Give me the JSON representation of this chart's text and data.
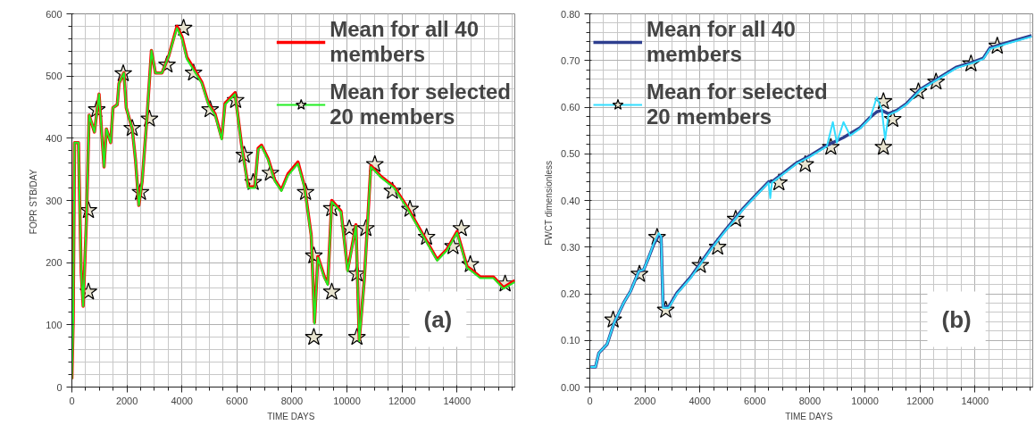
{
  "chart_data": [
    {
      "type": "line",
      "xlabel": "TIME   DAYS",
      "ylabel": "FOPR  STB/DAY",
      "xlim": [
        0,
        16100
      ],
      "ylim": [
        0,
        600
      ],
      "xticks": [
        0,
        2000,
        4000,
        6000,
        8000,
        10000,
        12000,
        14000
      ],
      "yticks": [
        0,
        100,
        200,
        300,
        400,
        500,
        600
      ],
      "grid": true,
      "legend": "top right",
      "annotations": [
        "(a)"
      ],
      "series": [
        {
          "name": "Mean for all 40 members",
          "color": "#ff0000",
          "x": [
            0,
            48,
            96,
            240,
            265,
            337,
            410,
            530,
            627,
            820,
            988,
            1169,
            1253,
            1410,
            1494,
            1650,
            1711,
            1891,
            1976,
            2193,
            2313,
            2434,
            2554,
            2735,
            2891,
            3036,
            3277,
            3518,
            3819,
            4000,
            4181,
            4422,
            4723,
            4964,
            5205,
            5446,
            5566,
            5928,
            6169,
            6410,
            6651,
            6771,
            6892,
            7133,
            7374,
            7615,
            7856,
            8217,
            8458,
            8699,
            8819,
            8940,
            9181,
            9301,
            9446,
            9783,
            10024,
            10325,
            10446,
            10626,
            10867,
            11229,
            11711,
            12193,
            12554,
            12916,
            13277,
            13639,
            14000,
            14362,
            14843,
            15325,
            15687,
            16100
          ],
          "values": [
            13,
            108,
            393,
            393,
            337,
            186,
            130,
            270,
            437,
            410,
            471,
            354,
            415,
            393,
            449,
            454,
            488,
            505,
            449,
            415,
            365,
            292,
            331,
            437,
            541,
            505,
            505,
            532,
            580,
            563,
            530,
            513,
            490,
            456,
            439,
            400,
            456,
            473,
            389,
            322,
            322,
            384,
            389,
            367,
            333,
            317,
            343,
            362,
            322,
            244,
            104,
            210,
            177,
            166,
            300,
            283,
            188,
            261,
            76,
            171,
            356,
            339,
            322,
            289,
            261,
            233,
            205,
            222,
            250,
            194,
            177,
            177,
            160,
            171
          ]
        },
        {
          "name": "Mean for selected 20 members",
          "color": "#22ee22",
          "x": [
            0,
            48,
            96,
            240,
            265,
            337,
            410,
            530,
            627,
            820,
            988,
            1169,
            1253,
            1410,
            1494,
            1650,
            1711,
            1891,
            1976,
            2193,
            2313,
            2434,
            2554,
            2735,
            2891,
            3036,
            3277,
            3518,
            3819,
            4000,
            4181,
            4422,
            4723,
            4964,
            5205,
            5446,
            5566,
            5928,
            6169,
            6410,
            6651,
            6771,
            6892,
            7133,
            7374,
            7615,
            7856,
            8217,
            8458,
            8699,
            8819,
            8940,
            9181,
            9301,
            9446,
            9783,
            10024,
            10325,
            10446,
            10626,
            10867,
            11229,
            11711,
            12193,
            12554,
            12916,
            13277,
            13639,
            14000,
            14362,
            14843,
            15325,
            15687,
            16100
          ],
          "values": [
            13,
            108,
            393,
            393,
            337,
            186,
            130,
            270,
            437,
            410,
            471,
            354,
            415,
            393,
            449,
            454,
            488,
            505,
            449,
            415,
            365,
            292,
            331,
            437,
            541,
            505,
            505,
            532,
            577,
            560,
            527,
            510,
            488,
            454,
            437,
            398,
            454,
            471,
            387,
            320,
            320,
            382,
            387,
            365,
            331,
            315,
            340,
            359,
            320,
            242,
            102,
            208,
            175,
            164,
            298,
            281,
            186,
            259,
            74,
            169,
            354,
            337,
            320,
            287,
            259,
            231,
            203,
            220,
            248,
            192,
            175,
            175,
            158,
            169
          ]
        },
        {
          "type": "scatter",
          "marker": "star",
          "color": "#e8e4d0",
          "x": [
            602,
            602,
            904,
            1867,
            2193,
            2494,
            2819,
            3458,
            4060,
            4422,
            5024,
            5952,
            6265,
            6590,
            7217,
            8494,
            8795,
            8795,
            9446,
            9446,
            10084,
            10361,
            10361,
            10687,
            11012,
            11650,
            12289,
            12892,
            13855,
            14157,
            14482,
            15747
          ],
          "values": [
            284,
            153,
            446,
            504,
            416,
            313,
            431,
            518,
            577,
            505,
            446,
            461,
            373,
            329,
            344,
            313,
            211,
            80,
            287,
            153,
            255,
            182,
            80,
            255,
            358,
            315,
            286,
            241,
            226,
            255,
            197,
            166
          ]
        }
      ]
    },
    {
      "type": "line",
      "xlabel": "TIME   DAYS",
      "ylabel": "FWCT   dimensionless",
      "xlim": [
        0,
        16100
      ],
      "ylim": [
        0,
        0.8
      ],
      "xticks": [
        0,
        2000,
        4000,
        6000,
        8000,
        10000,
        12000,
        14000
      ],
      "yticks": [
        {
          "value": 0,
          "label": "0.00"
        },
        {
          "value": 0.1,
          "label": "0.10"
        },
        {
          "value": 0.2,
          "label": "0.20"
        },
        {
          "value": 0.3,
          "label": "0.30"
        },
        {
          "value": 0.4,
          "label": "0.40"
        },
        {
          "value": 0.5,
          "label": "0.50"
        },
        {
          "value": 0.6,
          "label": "0.60"
        },
        {
          "value": 0.7,
          "label": "0.70"
        },
        {
          "value": 0.8,
          "label": "0.80"
        }
      ],
      "grid": true,
      "legend": "top left",
      "annotations": [
        "(b)"
      ],
      "series": [
        {
          "name": "Mean for all 40 members",
          "color": "#2e3f8f",
          "x": [
            24,
            206,
            327,
            629,
            871,
            1234,
            1476,
            1779,
            1960,
            2142,
            2323,
            2505,
            2590,
            2662,
            2868,
            3170,
            3654,
            4017,
            4380,
            4864,
            5590,
            6074,
            6497,
            6619,
            7042,
            7526,
            8010,
            8616,
            9220,
            9825,
            10188,
            10430,
            10612,
            10854,
            11156,
            11519,
            12003,
            12608,
            13334,
            13939,
            14302,
            14544,
            15149,
            16057
          ],
          "values": [
            0.043,
            0.043,
            0.073,
            0.092,
            0.136,
            0.181,
            0.205,
            0.248,
            0.252,
            0.278,
            0.306,
            0.326,
            0.322,
            0.172,
            0.172,
            0.202,
            0.235,
            0.265,
            0.295,
            0.332,
            0.384,
            0.414,
            0.44,
            0.44,
            0.459,
            0.481,
            0.496,
            0.518,
            0.535,
            0.556,
            0.578,
            0.59,
            0.593,
            0.586,
            0.593,
            0.608,
            0.638,
            0.66,
            0.686,
            0.697,
            0.705,
            0.727,
            0.738,
            0.753
          ]
        },
        {
          "name": "Mean for selected 20 members",
          "color": "#33ddff",
          "x": [
            24,
            206,
            327,
            629,
            871,
            1234,
            1476,
            1779,
            1960,
            2142,
            2323,
            2505,
            2590,
            2662,
            2868,
            3170,
            3654,
            4017,
            4380,
            4864,
            5590,
            6074,
            6497,
            6558,
            6619,
            7042,
            7526,
            8010,
            8616,
            8833,
            8978,
            9220,
            9462,
            9825,
            10188,
            10430,
            10612,
            10733,
            10854,
            11156,
            11519,
            12003,
            12608,
            13334,
            13939,
            14302,
            14544,
            15149,
            16057
          ],
          "values": [
            0.043,
            0.043,
            0.073,
            0.092,
            0.136,
            0.181,
            0.205,
            0.248,
            0.252,
            0.278,
            0.308,
            0.33,
            0.323,
            0.17,
            0.17,
            0.2,
            0.233,
            0.263,
            0.293,
            0.33,
            0.382,
            0.412,
            0.438,
            0.405,
            0.438,
            0.457,
            0.479,
            0.494,
            0.516,
            0.568,
            0.524,
            0.568,
            0.539,
            0.554,
            0.576,
            0.621,
            0.595,
            0.531,
            0.583,
            0.591,
            0.606,
            0.636,
            0.658,
            0.684,
            0.695,
            0.703,
            0.725,
            0.736,
            0.751
          ]
        },
        {
          "type": "scatter",
          "marker": "star",
          "color": "#e8e4d0",
          "x": [
            847,
            1803,
            2444,
            2759,
            4017,
            4646,
            5300,
            6873,
            7829,
            8760,
            10672,
            10672,
            11011,
            11943,
            12584,
            13855,
            14810
          ],
          "values": [
            0.144,
            0.242,
            0.321,
            0.165,
            0.261,
            0.3,
            0.36,
            0.438,
            0.477,
            0.514,
            0.612,
            0.514,
            0.574,
            0.633,
            0.654,
            0.693,
            0.731
          ]
        }
      ]
    }
  ]
}
